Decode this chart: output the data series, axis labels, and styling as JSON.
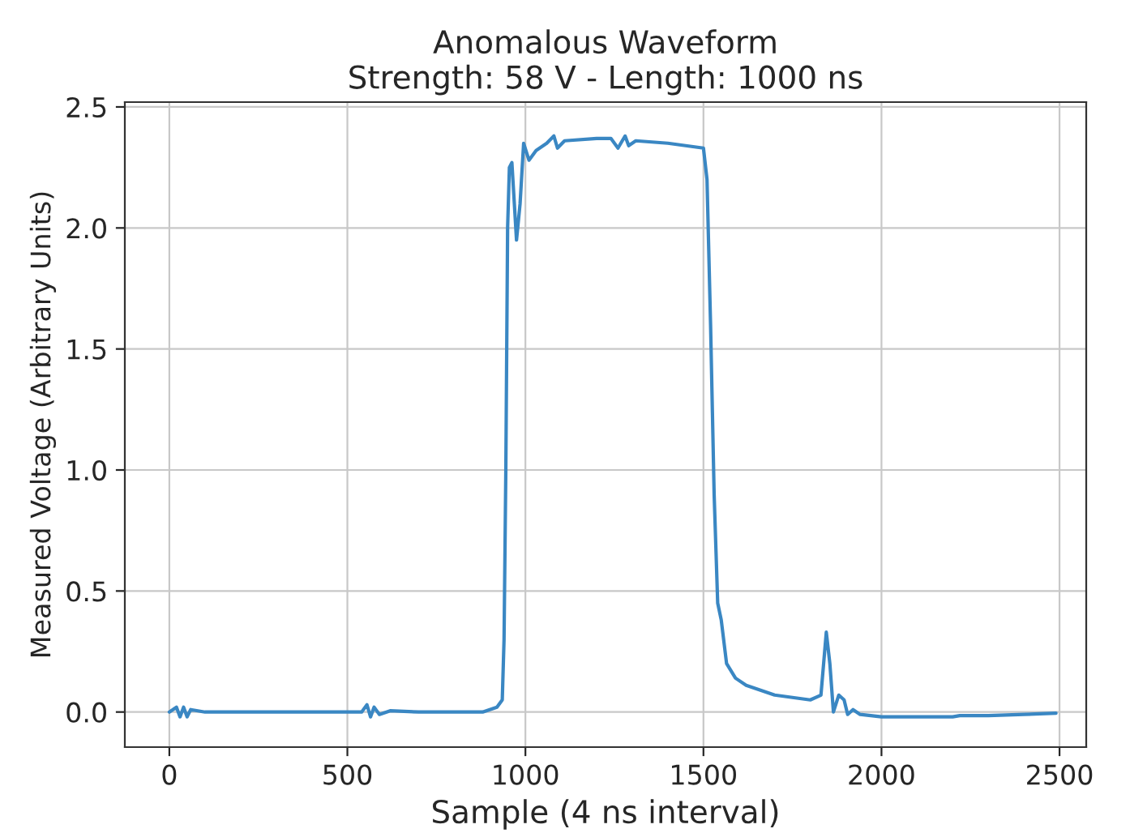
{
  "chart_data": {
    "type": "line",
    "title": "Anomalous Waveform",
    "subtitle": "Strength: 58 V - Length: 1000 ns",
    "xlabel": "Sample (4 ns interval)",
    "ylabel": "Measured Voltage (Arbitrary Units)",
    "x": [
      0,
      20,
      30,
      40,
      50,
      60,
      100,
      200,
      300,
      400,
      540,
      555,
      565,
      575,
      590,
      620,
      700,
      800,
      880,
      920,
      935,
      940,
      945,
      950,
      955,
      962,
      975,
      985,
      995,
      1010,
      1030,
      1060,
      1080,
      1090,
      1110,
      1200,
      1240,
      1260,
      1280,
      1290,
      1310,
      1400,
      1500,
      1510,
      1520,
      1530,
      1540,
      1550,
      1565,
      1590,
      1620,
      1700,
      1800,
      1830,
      1845,
      1855,
      1865,
      1880,
      1895,
      1905,
      1920,
      1940,
      2000,
      2100,
      2200,
      2220,
      2300,
      2400,
      2490
    ],
    "series": [
      {
        "color": "#3a87c3",
        "values": [
          0.0,
          0.02,
          -0.02,
          0.02,
          -0.02,
          0.01,
          0.0,
          0.0,
          0.0,
          0.0,
          0.0,
          0.03,
          -0.02,
          0.02,
          -0.01,
          0.005,
          0.0,
          0.0,
          0.0,
          0.02,
          0.05,
          0.3,
          1.0,
          2.0,
          2.25,
          2.27,
          1.95,
          2.1,
          2.35,
          2.28,
          2.32,
          2.35,
          2.38,
          2.33,
          2.36,
          2.37,
          2.37,
          2.33,
          2.38,
          2.34,
          2.36,
          2.35,
          2.33,
          2.2,
          1.6,
          0.9,
          0.45,
          0.38,
          0.2,
          0.14,
          0.11,
          0.07,
          0.05,
          0.07,
          0.33,
          0.2,
          0.0,
          0.07,
          0.05,
          -0.01,
          0.01,
          -0.01,
          -0.02,
          -0.02,
          -0.02,
          -0.015,
          -0.015,
          -0.01,
          -0.005
        ]
      }
    ],
    "xlim": [
      -125,
      2575
    ],
    "ylim": [
      -0.145,
      2.52
    ],
    "xticks": [
      0,
      500,
      1000,
      1500,
      2000,
      2500
    ],
    "yticks": [
      {
        "value": 0,
        "label": "0.0"
      },
      {
        "value": 0.5,
        "label": "0.5"
      },
      {
        "value": 1,
        "label": "1.0"
      },
      {
        "value": 1.5,
        "label": "1.5"
      },
      {
        "value": 2,
        "label": "2.0"
      },
      {
        "value": 2.5,
        "label": "2.5"
      }
    ],
    "grid": true
  }
}
